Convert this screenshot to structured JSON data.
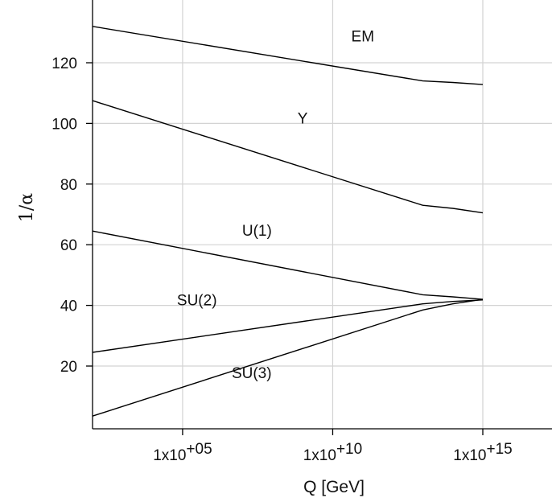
{
  "chart_data": {
    "type": "line",
    "title": "",
    "xlabel": "Q [GeV]",
    "ylabel": "1/α",
    "x_scale": "log10",
    "xlim": [
      100,
      1000000000000000.0
    ],
    "ylim": [
      0,
      135
    ],
    "grid": true,
    "x_ticks": [
      {
        "value": 100000.0,
        "base": "1x10",
        "exp": "+05"
      },
      {
        "value": 10000000000.0,
        "base": "1x10",
        "exp": "+10"
      },
      {
        "value": 1000000000000000.0,
        "base": "1x10",
        "exp": "+15"
      }
    ],
    "y_ticks": [
      {
        "value": 20,
        "label": "20"
      },
      {
        "value": 40,
        "label": "40"
      },
      {
        "value": 60,
        "label": "60"
      },
      {
        "value": 80,
        "label": "80"
      },
      {
        "value": 100,
        "label": "100"
      },
      {
        "value": 120,
        "label": "120"
      }
    ],
    "series": [
      {
        "name": "EM",
        "x": [
          100,
          10000000000000.0,
          100000000000000.0,
          1000000000000000.0
        ],
        "y": [
          132,
          114,
          113.5,
          112.8
        ]
      },
      {
        "name": "Y",
        "x": [
          100,
          10000000000000.0,
          100000000000000.0,
          1000000000000000.0
        ],
        "y": [
          107.5,
          73,
          72,
          70.5
        ]
      },
      {
        "name": "U(1)",
        "x": [
          100,
          10000000000000.0,
          100000000000000.0,
          1000000000000000.0
        ],
        "y": [
          64.5,
          43.5,
          42.8,
          42
        ]
      },
      {
        "name": "SU(2)",
        "x": [
          100,
          10000000000000.0,
          100000000000000.0,
          1000000000000000.0
        ],
        "y": [
          24.5,
          40.5,
          41.3,
          41.8
        ]
      },
      {
        "name": "SU(3)",
        "x": [
          100,
          10000000000000.0,
          100000000000000.0,
          1000000000000000.0
        ],
        "y": [
          3.5,
          38.5,
          40.5,
          42
        ]
      }
    ],
    "annotations": [
      {
        "text": "EM",
        "x": 100000000000.0,
        "y": 127
      },
      {
        "text": "Y",
        "x": 1000000000.0,
        "y": 100
      },
      {
        "text": "U(1)",
        "x": 30000000.0,
        "y": 63
      },
      {
        "text": "SU(2)",
        "x": 300000.0,
        "y": 40
      },
      {
        "text": "SU(3)",
        "x": 20000000.0,
        "y": 16
      }
    ]
  }
}
